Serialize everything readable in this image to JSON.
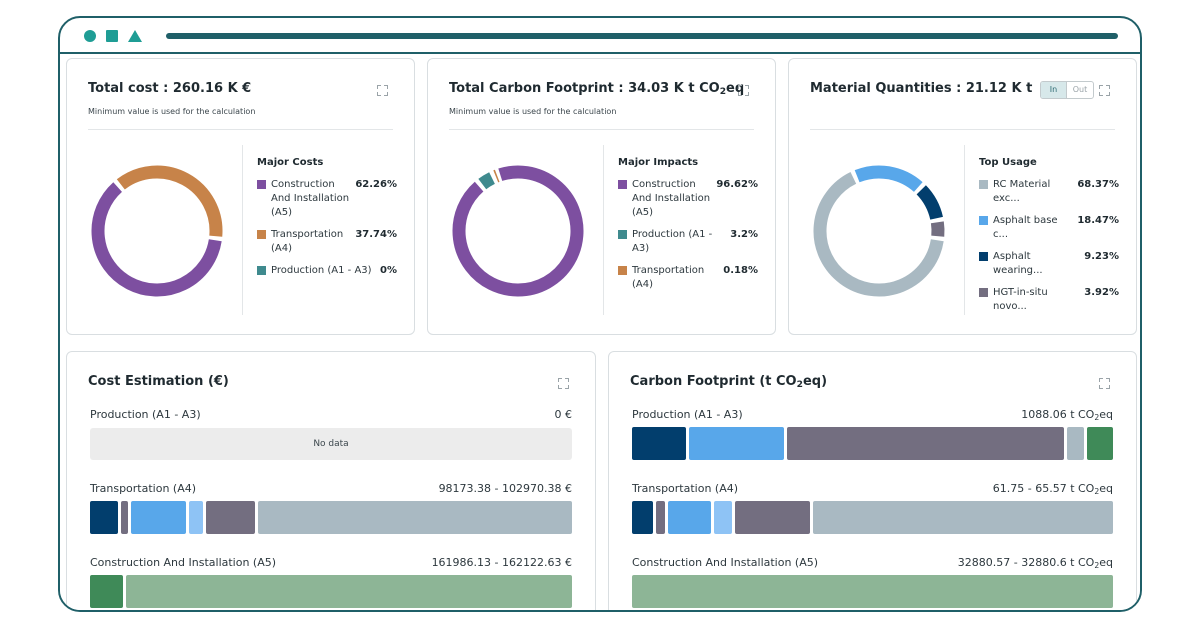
{
  "colors": {
    "purple": "#7d4fa0",
    "orange": "#c78349",
    "teal": "#3f8a8e",
    "light_gray_blue": "#a9b9c2",
    "blue": "#58a7ea",
    "navy": "#023e6d",
    "slate": "#736e80",
    "light_blue": "#8ec3f5",
    "green_dark": "#3f8a58",
    "green_light": "#8db596",
    "frame": "#1f5f68"
  },
  "cards": {
    "total_cost": {
      "title": "Total cost : 260.16 K €",
      "subtitle": "Minimum value is used for the calculation",
      "legend_title": "Major Costs",
      "items": [
        {
          "label": "Construction And Installation (A5)",
          "value": "62.26%",
          "pct": 62.26,
          "color": "#7d4fa0"
        },
        {
          "label": "Transportation (A4)",
          "value": "37.74%",
          "pct": 37.74,
          "color": "#c78349"
        },
        {
          "label": "Production (A1 - A3)",
          "value": "0%",
          "pct": 0,
          "color": "#3f8a8e"
        }
      ]
    },
    "carbon_total": {
      "title_prefix": "Total Carbon Footprint : 34.03 K t CO",
      "title_sub": "2",
      "title_suffix": "eq",
      "subtitle": "Minimum value is used for the calculation",
      "legend_title": "Major Impacts",
      "items": [
        {
          "label": "Construction And Installation (A5)",
          "value": "96.62%",
          "pct": 96.62,
          "color": "#7d4fa0"
        },
        {
          "label": "Production (A1 - A3)",
          "value": "3.2%",
          "pct": 3.2,
          "color": "#3f8a8e"
        },
        {
          "label": "Transportation (A4)",
          "value": "0.18%",
          "pct": 0.18,
          "color": "#c78349"
        }
      ]
    },
    "materials": {
      "title": "Material Quantities : 21.12 K t",
      "toggle_in": "In",
      "toggle_out": "Out",
      "legend_title": "Top Usage",
      "items": [
        {
          "label": "RC Material exc...",
          "value": "68.37%",
          "pct": 68.37,
          "color": "#a9b9c2"
        },
        {
          "label": "Asphalt base c...",
          "value": "18.47%",
          "pct": 18.47,
          "color": "#58a7ea"
        },
        {
          "label": "Asphalt wearing...",
          "value": "9.23%",
          "pct": 9.23,
          "color": "#023e6d"
        },
        {
          "label": "HGT-in-situ novo...",
          "value": "3.92%",
          "pct": 3.92,
          "color": "#736e80"
        }
      ]
    }
  },
  "cost_estimation": {
    "title": "Cost Estimation (€)",
    "rows": [
      {
        "label": "Production (A1 - A3)",
        "value": "0 €",
        "no_data": "No data",
        "segments": []
      },
      {
        "label": "Transportation (A4)",
        "value": "98173.38 - 102970.38 €",
        "segments": [
          {
            "share": 6,
            "color": "#023e6d"
          },
          {
            "share": 1.6,
            "color": "#736e80"
          },
          {
            "share": 11.7,
            "color": "#58a7ea"
          },
          {
            "share": 3,
            "color": "#8ec3f5"
          },
          {
            "share": 10.5,
            "color": "#736e80"
          },
          {
            "share": 67.2,
            "color": "#a9b9c2"
          }
        ]
      },
      {
        "label": "Construction And Installation (A5)",
        "value": "161986.13 - 162122.63 €",
        "segments": [
          {
            "share": 6.8,
            "color": "#3f8a58"
          },
          {
            "share": 93.2,
            "color": "#8db596"
          }
        ]
      }
    ]
  },
  "carbon_footprint": {
    "title_prefix": "Carbon Footprint (t CO",
    "title_sub": "2",
    "title_suffix": "eq)",
    "unit_sub": "2",
    "rows": [
      {
        "label": "Production (A1 - A3)",
        "value_prefix": "1088.06 t CO",
        "value_suffix": "eq",
        "segments": [
          {
            "share": 11.4,
            "color": "#023e6d"
          },
          {
            "share": 20,
            "color": "#58a7ea"
          },
          {
            "share": 58.5,
            "color": "#736e80"
          },
          {
            "share": 3.6,
            "color": "#a9b9c2"
          },
          {
            "share": 5.4,
            "color": "#3f8a58"
          }
        ]
      },
      {
        "label": "Transportation (A4)",
        "value_prefix": "61.75 - 65.57 t CO",
        "value_suffix": "eq",
        "segments": [
          {
            "share": 4.6,
            "color": "#023e6d"
          },
          {
            "share": 1.9,
            "color": "#736e80"
          },
          {
            "share": 9.2,
            "color": "#58a7ea"
          },
          {
            "share": 3.9,
            "color": "#8ec3f5"
          },
          {
            "share": 16.1,
            "color": "#736e80"
          },
          {
            "share": 64.3,
            "color": "#a9b9c2"
          }
        ]
      },
      {
        "label": "Construction And Installation (A5)",
        "value_prefix": "32880.57 - 32880.6 t CO",
        "value_suffix": "eq",
        "segments": [
          {
            "share": 100,
            "color": "#8db596"
          }
        ]
      }
    ]
  }
}
